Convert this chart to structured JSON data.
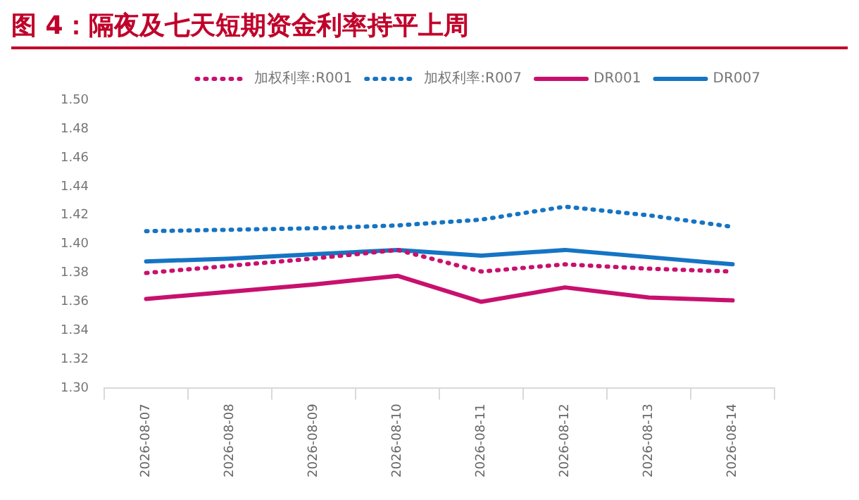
{
  "chart_data": {
    "type": "line",
    "title": "图 4：隔夜及七天短期资金利率持平上周",
    "categories": [
      "2026-08-07",
      "2026-08-08",
      "2026-08-09",
      "2026-08-10",
      "2026-08-11",
      "2026-08-12",
      "2026-08-13",
      "2026-08-14"
    ],
    "series": [
      {
        "name": "加权利率:R001",
        "color": "#c8106e",
        "line_style": "dotted",
        "values": [
          1.38,
          1.385,
          1.39,
          1.396,
          1.381,
          1.386,
          1.383,
          1.381
        ]
      },
      {
        "name": "加权利率:R007",
        "color": "#1574c4",
        "line_style": "dotted",
        "values": [
          1.409,
          1.41,
          1.411,
          1.413,
          1.417,
          1.426,
          1.42,
          1.412
        ]
      },
      {
        "name": "DR001",
        "color": "#c8106e",
        "line_style": "solid",
        "values": [
          1.362,
          1.367,
          1.372,
          1.378,
          1.36,
          1.37,
          1.363,
          1.361
        ]
      },
      {
        "name": "DR007",
        "color": "#1574c4",
        "line_style": "solid",
        "values": [
          1.388,
          1.39,
          1.393,
          1.396,
          1.392,
          1.396,
          1.391,
          1.386
        ]
      }
    ],
    "ylim": [
      1.3,
      1.5
    ],
    "yticks": [
      {
        "value": 1.3,
        "label": "1.30"
      },
      {
        "value": 1.32,
        "label": "1.32"
      },
      {
        "value": 1.34,
        "label": "1.34"
      },
      {
        "value": 1.36,
        "label": "1.36"
      },
      {
        "value": 1.38,
        "label": "1.38"
      },
      {
        "value": 1.4,
        "label": "1.40"
      },
      {
        "value": 1.42,
        "label": "1.42"
      },
      {
        "value": 1.44,
        "label": "1.44"
      },
      {
        "value": 1.46,
        "label": "1.46"
      },
      {
        "value": 1.48,
        "label": "1.48"
      },
      {
        "value": 1.5,
        "label": "1.50"
      }
    ],
    "grid": false,
    "legend": "top",
    "marker": "none"
  }
}
